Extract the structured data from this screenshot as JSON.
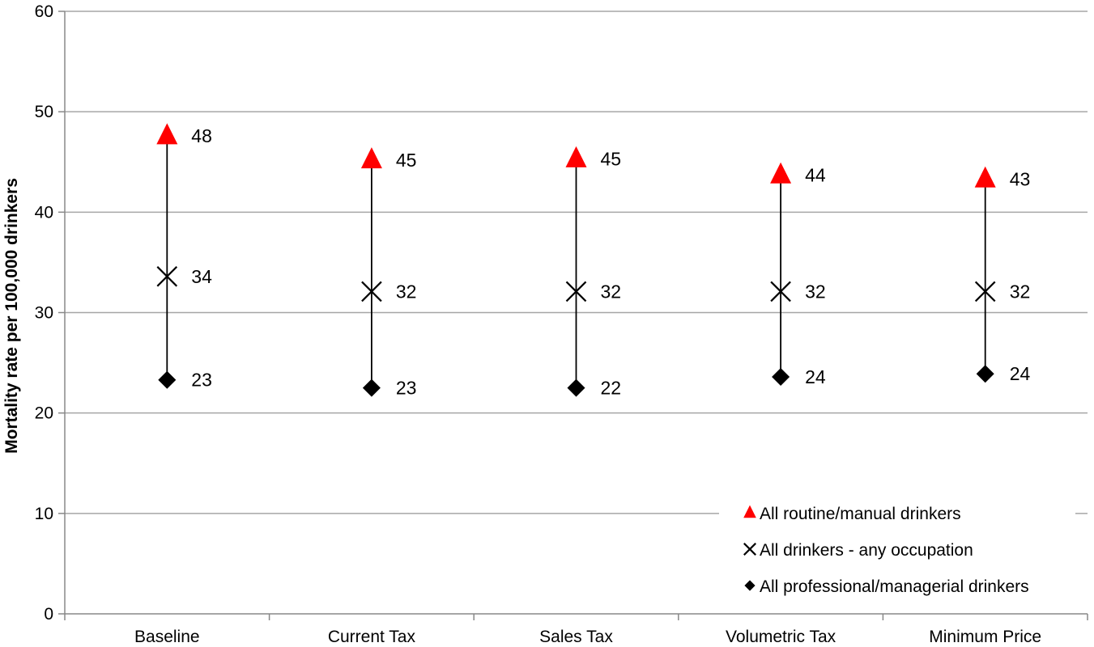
{
  "chart_data": {
    "type": "scatter",
    "title": "",
    "xlabel": "",
    "ylabel": "Mortality rate per 100,000 drinkers",
    "categories": [
      "Baseline",
      "Current Tax",
      "Sales Tax",
      "Volumetric Tax",
      "Minimum Price"
    ],
    "ylim": [
      0,
      60
    ],
    "yticks": [
      0,
      10,
      20,
      30,
      40,
      50,
      60
    ],
    "grid": true,
    "legend_position": "bottom-right",
    "series": [
      {
        "name": "All routine/manual drinkers",
        "marker": "triangle",
        "color": "#ff0000",
        "values": [
          47.6,
          45.2,
          45.3,
          43.7,
          43.3
        ],
        "labels": [
          "48",
          "45",
          "45",
          "44",
          "43"
        ]
      },
      {
        "name": "All drinkers - any occupation",
        "marker": "x",
        "color": "#000000",
        "values": [
          33.6,
          32.1,
          32.1,
          32.1,
          32.1
        ],
        "labels": [
          "34",
          "32",
          "32",
          "32",
          "32"
        ]
      },
      {
        "name": "All professional/managerial drinkers",
        "marker": "diamond",
        "color": "#000000",
        "values": [
          23.3,
          22.5,
          22.5,
          23.6,
          23.9
        ],
        "labels": [
          "23",
          "23",
          "22",
          "24",
          "24"
        ]
      }
    ],
    "colors": {
      "gridline": "#a6a6a6",
      "axis": "#888888",
      "range_line": "#000000"
    }
  }
}
